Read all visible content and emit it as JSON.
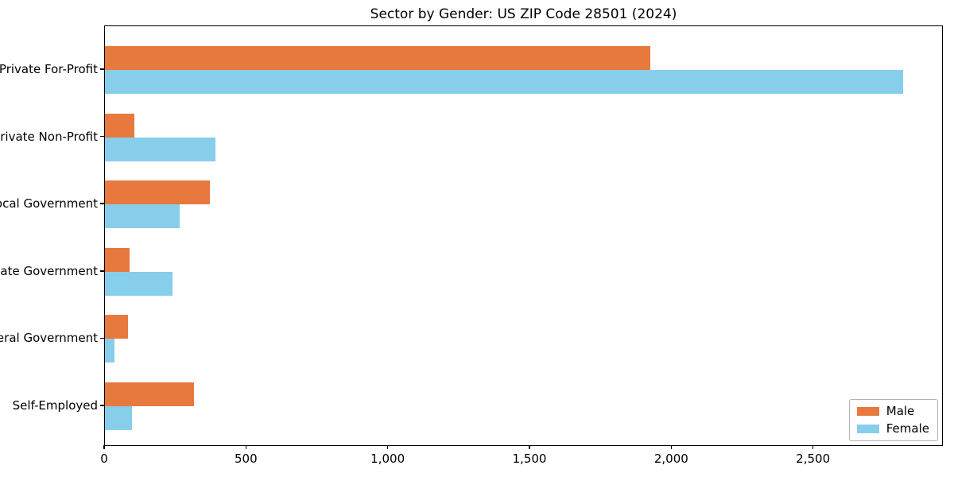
{
  "page": {
    "background": "#ffffff"
  },
  "chart_data": {
    "type": "bar",
    "orientation": "horizontal",
    "title": "Sector by Gender: US ZIP Code 28501 (2024)",
    "categories": [
      "Private For-Profit",
      "Private Non-Profit",
      "Local Government",
      "State Government",
      "Federal Government",
      "Self-Employed"
    ],
    "series": [
      {
        "name": "Male",
        "color": "#e8793e",
        "values": [
          1927,
          103,
          372,
          87,
          81,
          316
        ]
      },
      {
        "name": "Female",
        "color": "#87ceeb",
        "values": [
          2820,
          390,
          264,
          240,
          34,
          96
        ]
      }
    ],
    "xlabel": "",
    "ylabel": "",
    "xlim": [
      0,
      2958
    ],
    "x_ticks": [
      0,
      500,
      1000,
      1500,
      2000,
      2500
    ],
    "x_tick_labels": [
      "0",
      "500",
      "1,000",
      "1,500",
      "2,000",
      "2,500"
    ],
    "grid": false,
    "legend": {
      "position": "lower right",
      "entries": [
        "Male",
        "Female"
      ]
    },
    "axis_color": "#000000",
    "legend_border_color": "#b3b3b3"
  }
}
